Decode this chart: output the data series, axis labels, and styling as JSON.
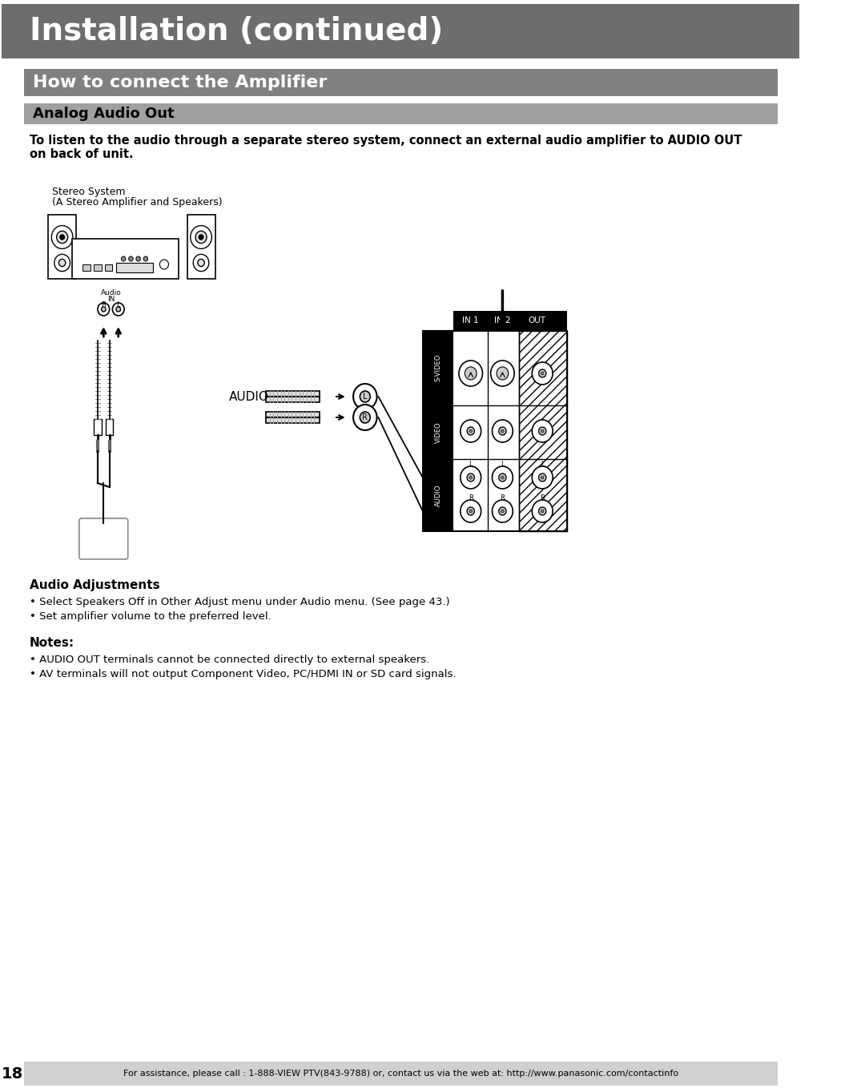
{
  "title": "Installation (continued)",
  "title_bg": "#6d6d6d",
  "title_color": "#ffffff",
  "title_fontsize": 28,
  "section1": "How to connect the Amplifier",
  "section1_bg": "#808080",
  "section1_color": "#ffffff",
  "section1_fontsize": 16,
  "section2": "Analog Audio Out",
  "section2_bg": "#a0a0a0",
  "section2_color": "#000000",
  "section2_fontsize": 13,
  "body_text1": "To listen to the audio through a separate stereo system, connect an external audio amplifier to AUDIO OUT",
  "body_text2": "on back of unit.",
  "stereo_label1": "Stereo System",
  "stereo_label2": "(A Stereo Amplifier and Speakers)",
  "audio_adj_title": "Audio Adjustments",
  "audio_adj_bullets": [
    "• Select Speakers Off in Other Adjust menu under Audio menu. (See page 43.)",
    "• Set amplifier volume to the preferred level."
  ],
  "notes_title": "Notes:",
  "notes_bullets": [
    "• AUDIO OUT terminals cannot be connected directly to external speakers.",
    "• AV terminals will not output Component Video, PC/HDMI IN or SD card signals."
  ],
  "footer_text": "For assistance, please call : 1-888-VIEW PTV(843-9788) or, contact us via the web at: http://www.panasonic.com/contactinfo",
  "page_number": "18",
  "bg_color": "#ffffff",
  "text_color": "#000000",
  "footer_bg": "#d0d0d0"
}
